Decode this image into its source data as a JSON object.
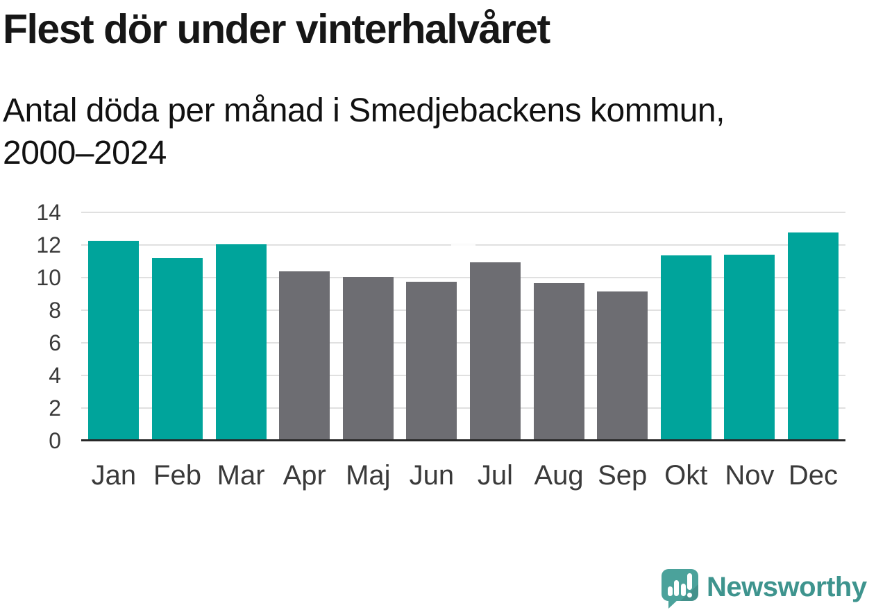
{
  "header": {
    "title": "Flest dör under vinterhalvåret",
    "subtitle_line1": "Antal döda per månad i Smedjebackens kommun,",
    "subtitle_line2": "2000–2024"
  },
  "chart_data": {
    "type": "bar",
    "title": "Flest dör under vinterhalvåret",
    "subtitle": "Antal döda per månad i Smedjebackens kommun, 2000–2024",
    "categories": [
      "Jan",
      "Feb",
      "Mar",
      "Apr",
      "Maj",
      "Jun",
      "Jul",
      "Aug",
      "Sep",
      "Okt",
      "Nov",
      "Dec"
    ],
    "values": [
      12.25,
      11.2,
      12.05,
      10.4,
      10.05,
      9.75,
      10.95,
      9.65,
      9.15,
      11.35,
      11.4,
      12.75
    ],
    "bar_colors": [
      "#00A49B",
      "#00A49B",
      "#00A49B",
      "#6D6D72",
      "#6D6D72",
      "#6D6D72",
      "#6D6D72",
      "#6D6D72",
      "#6D6D72",
      "#00A49B",
      "#00A49B",
      "#00A49B"
    ],
    "xlabel": "",
    "ylabel": "",
    "ylim": [
      0,
      14
    ],
    "yticks": [
      0,
      2,
      4,
      6,
      8,
      10,
      12,
      14
    ],
    "grid": true,
    "legend": false
  },
  "style": {
    "bar_teal": "#00A49B",
    "bar_gray": "#6D6D72",
    "gridline_color": "#E0E0E0",
    "axis_line_color": "#272727",
    "tick_label_color": "#3A3A3A",
    "background": "#FFFFFF"
  },
  "branding": {
    "logo_text": "Newsworthy",
    "logo_text_color": "#3E948E",
    "logo_icon": "newsworthy-speech-bubble-bar-chart-icon",
    "logo_icon_color": "#4BA29B"
  }
}
